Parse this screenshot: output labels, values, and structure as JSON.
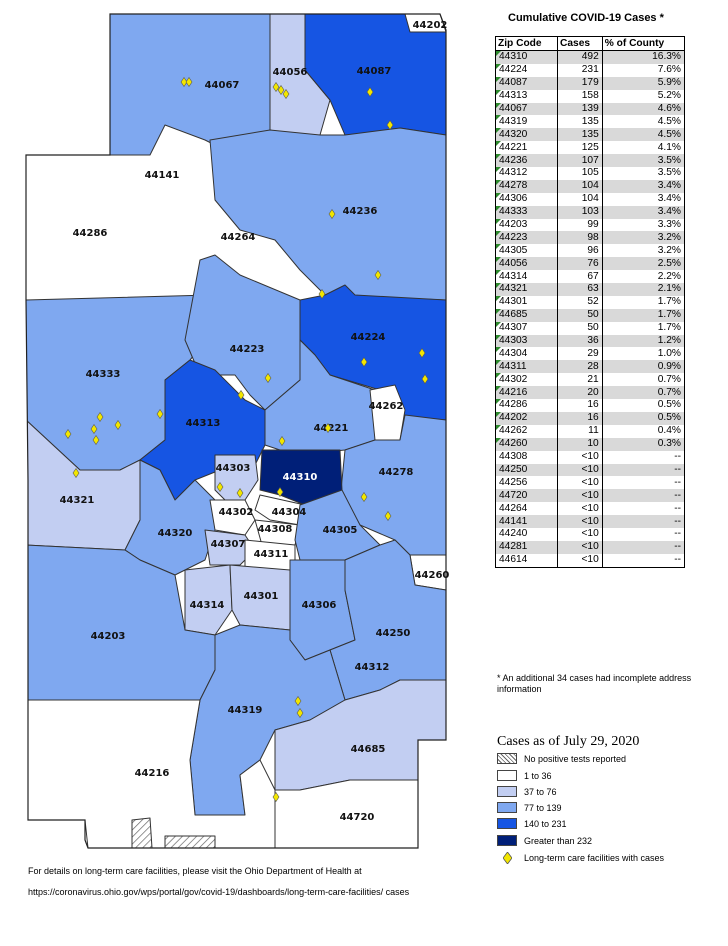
{
  "colors": {
    "c1": "#ffffff",
    "c2": "#c2cef2",
    "c3": "#7fa8f0",
    "c4": "#1655e3",
    "c5": "#001f78",
    "facility": "#f2e600",
    "border": "#333333"
  },
  "map": {
    "zip_labels": [
      "44202",
      "44067",
      "44056",
      "44087",
      "44141",
      "44286",
      "44236",
      "44264",
      "44224",
      "44223",
      "44333",
      "44313",
      "44262",
      "44221",
      "44321",
      "44303",
      "44310",
      "44278",
      "44302",
      "44304",
      "44308",
      "44320",
      "44307",
      "44305",
      "44311",
      "44314",
      "44301",
      "44306",
      "44260",
      "44203",
      "44250",
      "44312",
      "44319",
      "44685",
      "44216",
      "44720"
    ]
  },
  "table": {
    "title": "Cumulative COVID-19 Cases *",
    "headers": [
      "Zip Code",
      "Cases",
      "% of County"
    ],
    "rows": [
      {
        "zip": "44310",
        "cases": "492",
        "pct": "16.3%",
        "mark": true
      },
      {
        "zip": "44224",
        "cases": "231",
        "pct": "7.6%",
        "mark": true
      },
      {
        "zip": "44087",
        "cases": "179",
        "pct": "5.9%",
        "mark": true
      },
      {
        "zip": "44313",
        "cases": "158",
        "pct": "5.2%",
        "mark": true
      },
      {
        "zip": "44067",
        "cases": "139",
        "pct": "4.6%",
        "mark": true
      },
      {
        "zip": "44319",
        "cases": "135",
        "pct": "4.5%",
        "mark": true
      },
      {
        "zip": "44320",
        "cases": "135",
        "pct": "4.5%",
        "mark": true
      },
      {
        "zip": "44221",
        "cases": "125",
        "pct": "4.1%",
        "mark": true
      },
      {
        "zip": "44236",
        "cases": "107",
        "pct": "3.5%",
        "mark": true
      },
      {
        "zip": "44312",
        "cases": "105",
        "pct": "3.5%",
        "mark": true
      },
      {
        "zip": "44278",
        "cases": "104",
        "pct": "3.4%",
        "mark": true
      },
      {
        "zip": "44306",
        "cases": "104",
        "pct": "3.4%",
        "mark": true
      },
      {
        "zip": "44333",
        "cases": "103",
        "pct": "3.4%",
        "mark": true
      },
      {
        "zip": "44203",
        "cases": "99",
        "pct": "3.3%",
        "mark": true
      },
      {
        "zip": "44223",
        "cases": "98",
        "pct": "3.2%",
        "mark": true
      },
      {
        "zip": "44305",
        "cases": "96",
        "pct": "3.2%",
        "mark": true
      },
      {
        "zip": "44056",
        "cases": "76",
        "pct": "2.5%",
        "mark": true
      },
      {
        "zip": "44314",
        "cases": "67",
        "pct": "2.2%",
        "mark": true
      },
      {
        "zip": "44321",
        "cases": "63",
        "pct": "2.1%",
        "mark": true
      },
      {
        "zip": "44301",
        "cases": "52",
        "pct": "1.7%",
        "mark": true
      },
      {
        "zip": "44685",
        "cases": "50",
        "pct": "1.7%",
        "mark": true
      },
      {
        "zip": "44307",
        "cases": "50",
        "pct": "1.7%",
        "mark": true
      },
      {
        "zip": "44303",
        "cases": "36",
        "pct": "1.2%",
        "mark": true
      },
      {
        "zip": "44304",
        "cases": "29",
        "pct": "1.0%",
        "mark": true
      },
      {
        "zip": "44311",
        "cases": "28",
        "pct": "0.9%",
        "mark": true
      },
      {
        "zip": "44302",
        "cases": "21",
        "pct": "0.7%",
        "mark": true
      },
      {
        "zip": "44216",
        "cases": "20",
        "pct": "0.7%",
        "mark": true
      },
      {
        "zip": "44286",
        "cases": "16",
        "pct": "0.5%",
        "mark": true
      },
      {
        "zip": "44202",
        "cases": "16",
        "pct": "0.5%",
        "mark": true
      },
      {
        "zip": "44262",
        "cases": "11",
        "pct": "0.4%",
        "mark": true
      },
      {
        "zip": "44260",
        "cases": "10",
        "pct": "0.3%",
        "mark": true
      },
      {
        "zip": "44308",
        "cases": "<10",
        "pct": "--",
        "mark": false
      },
      {
        "zip": "44250",
        "cases": "<10",
        "pct": "--",
        "mark": false
      },
      {
        "zip": "44256",
        "cases": "<10",
        "pct": "--",
        "mark": false
      },
      {
        "zip": "44720",
        "cases": "<10",
        "pct": "--",
        "mark": false
      },
      {
        "zip": "44264",
        "cases": "<10",
        "pct": "--",
        "mark": false
      },
      {
        "zip": "44141",
        "cases": "<10",
        "pct": "--",
        "mark": false
      },
      {
        "zip": "44240",
        "cases": "<10",
        "pct": "--",
        "mark": false
      },
      {
        "zip": "44281",
        "cases": "<10",
        "pct": "--",
        "mark": false
      },
      {
        "zip": "44614",
        "cases": "<10",
        "pct": "--",
        "mark": false
      }
    ],
    "footnote": "* An additional 34 cases had incomplete address information"
  },
  "legend": {
    "title": "Cases as of July 29, 2020",
    "items": [
      {
        "label": "No positive tests reported",
        "swatch": "hatch"
      },
      {
        "label": "1 to 36",
        "swatch": "c1"
      },
      {
        "label": "37 to 76",
        "swatch": "c2"
      },
      {
        "label": "77 to 139",
        "swatch": "c3"
      },
      {
        "label": "140 to 231",
        "swatch": "c4"
      },
      {
        "label": "Greater than 232",
        "swatch": "c5"
      },
      {
        "label": "Long-term care facilities with cases",
        "swatch": "diamond"
      }
    ]
  },
  "notes": {
    "line1": "For details on long-term care facilities, please visit the Ohio Department of Health at",
    "line2": "https://coronavirus.ohio.gov/wps/portal/gov/covid-19/dashboards/long-term-care-facilities/ cases"
  }
}
